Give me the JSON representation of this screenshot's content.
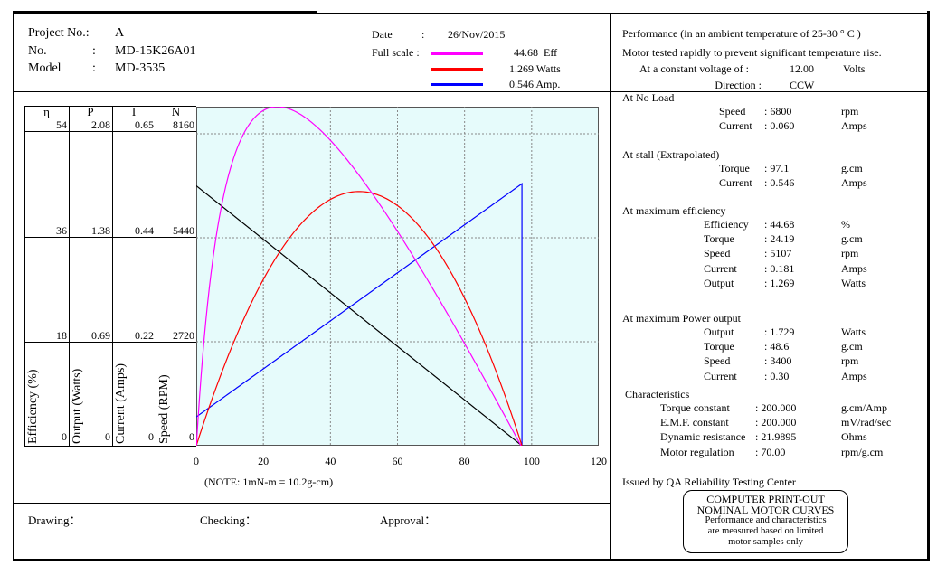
{
  "header": {
    "project_label": "Project No.:",
    "project_value": "A",
    "no_label": "No.",
    "no_value": "MD-15K26A01",
    "model_label": "Model",
    "model_value": "MD-3535",
    "colon": ":",
    "date_label": "Date",
    "date_value": "26/Nov/2015",
    "full_scale_label": "Full scale :",
    "legend": [
      {
        "value": "44.68",
        "unit": "Eff",
        "color": "#ff00ff"
      },
      {
        "value": "1.269",
        "unit": "Watts",
        "color": "#ff0000"
      },
      {
        "value": "0.546",
        "unit": "Amp.",
        "color": "#0000ff"
      }
    ]
  },
  "performance": {
    "title": "Performance (in an ambient temperature of 25-30 ° C )",
    "note": "Motor tested rapidly to prevent significant temperature rise.",
    "voltage_label": "At a constant voltage of :",
    "voltage_value": "12.00",
    "voltage_unit": "Volts",
    "direction_label": "Direction :",
    "direction_value": "CCW",
    "sections": [
      {
        "title": "At No Load",
        "rows": [
          [
            "Speed",
            ": 6800",
            "rpm"
          ],
          [
            "Current",
            ": 0.060",
            "Amps"
          ]
        ]
      },
      {
        "title": "At stall (Extrapolated)",
        "rows": [
          [
            "Torque",
            ": 97.1",
            "g.cm"
          ],
          [
            "Current",
            ": 0.546",
            "Amps"
          ]
        ]
      },
      {
        "title": "At maximum efficiency",
        "rows": [
          [
            "Efficiency",
            ": 44.68",
            "%"
          ],
          [
            "Torque",
            ": 24.19",
            "g.cm"
          ],
          [
            "Speed",
            ": 5107",
            "rpm"
          ],
          [
            "Current",
            ": 0.181",
            "Amps"
          ],
          [
            "Output",
            ": 1.269",
            "Watts"
          ]
        ]
      },
      {
        "title": "At maximum Power output",
        "rows": [
          [
            "Output",
            ": 1.729",
            "Watts"
          ],
          [
            "Torque",
            ": 48.6",
            "g.cm"
          ],
          [
            "Speed",
            ": 3400",
            "rpm"
          ],
          [
            "Current",
            ": 0.30",
            "Amps"
          ]
        ]
      },
      {
        "title": "Characteristics",
        "rows": [
          [
            "Torque constant",
            ": 200.000",
            "g.cm/Amp"
          ],
          [
            "E.M.F. constant",
            ": 200.000",
            "mV/rad/sec"
          ],
          [
            "Dynamic resistance",
            ": 21.9895",
            "Ohms"
          ],
          [
            "Motor regulation",
            ": 70.00",
            "rpm/g.cm"
          ]
        ]
      }
    ]
  },
  "footer": {
    "issued": "Issued by QA Reliability Testing  Center",
    "stamp_line1": "COMPUTER PRINT-OUT",
    "stamp_line2": "NOMINAL MOTOR CURVES",
    "stamp_line3": "Performance and characteristics",
    "stamp_line4": "are  measured  based  on  limited",
    "stamp_line5": "motor samples only",
    "drawing": "Drawing：",
    "checking": "Checking：",
    "approval": "Approval："
  },
  "chart_data": {
    "type": "line",
    "xlabel": "(NOTE: 1mN-m = 10.2g-cm)",
    "xlim": [
      0,
      120
    ],
    "xticks": [
      "0",
      "20",
      "40",
      "60",
      "80",
      "100",
      "120"
    ],
    "axes": [
      {
        "symbol": "η",
        "label": "Efficiency (%)",
        "ticks": [
          "0",
          "18",
          "36",
          "54"
        ]
      },
      {
        "symbol": "P",
        "label": "Output (Watts)",
        "ticks": [
          "0",
          "0.69",
          "1.38",
          "2.08"
        ]
      },
      {
        "symbol": "I",
        "label": "Current (Amps)",
        "ticks": [
          "0",
          "0.22",
          "0.44",
          "0.65"
        ]
      },
      {
        "symbol": "N",
        "label": "Speed (RPM)",
        "ticks": [
          "0",
          "2720",
          "5440",
          "8160"
        ]
      }
    ],
    "model": {
      "voltage": 12.0,
      "no_load_speed": 6800,
      "no_load_current": 0.06,
      "stall_torque": 97.1,
      "stall_current": 0.546
    },
    "series": [
      {
        "name": "Speed",
        "color": "#000000",
        "full_scale": 8160
      },
      {
        "name": "Current",
        "color": "#0000ff",
        "full_scale": 0.65
      },
      {
        "name": "Output",
        "color": "#ff0000",
        "full_scale": 2.08
      },
      {
        "name": "Efficiency",
        "color": "#ff00ff",
        "peak": 44.68
      }
    ],
    "grid": true
  }
}
